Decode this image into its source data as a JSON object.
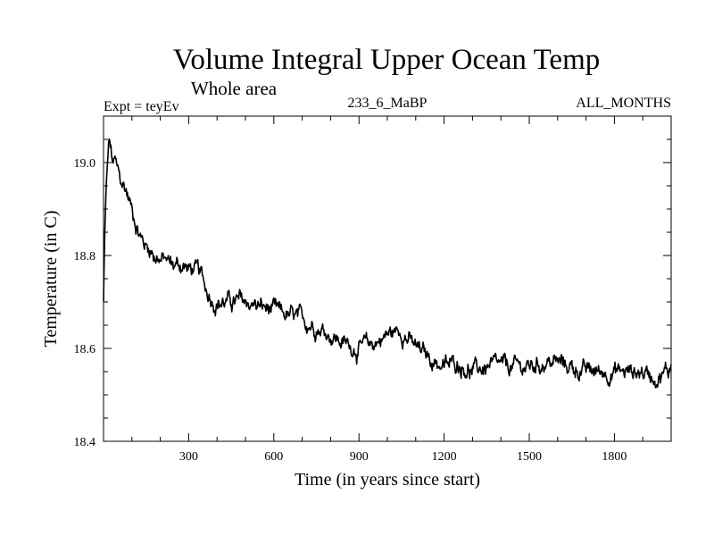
{
  "chart_data": {
    "type": "line",
    "title": "Volume Integral Upper Ocean Temp",
    "subtitle": "Whole area",
    "expt_label": "Expt = teyEv",
    "run_label": "233_6_MaBP",
    "months_label": "ALL_MONTHS",
    "xlabel": "Time (in years since start)",
    "ylabel": "Temperature (in C)",
    "xlim": [
      0,
      2000
    ],
    "ylim": [
      18.4,
      19.1
    ],
    "xticks": [
      "300",
      "600",
      "900",
      "1200",
      "1500",
      "1800"
    ],
    "yticks": [
      "18.4",
      "18.6",
      "18.8",
      "19.0"
    ],
    "grid": false,
    "series": [
      {
        "name": "Volume Integral Upper Ocean Temp",
        "color": "#000000",
        "x": [
          0,
          5,
          10,
          15,
          20,
          25,
          30,
          40,
          50,
          60,
          70,
          80,
          90,
          100,
          110,
          120,
          130,
          140,
          150,
          160,
          170,
          180,
          190,
          200,
          220,
          240,
          260,
          280,
          300,
          320,
          340,
          360,
          380,
          400,
          450,
          500,
          550,
          600,
          650,
          700,
          750,
          800,
          850,
          900,
          950,
          1000,
          1050,
          1100,
          1150,
          1200,
          1250,
          1300,
          1350,
          1400,
          1450,
          1500,
          1550,
          1600,
          1650,
          1700,
          1750,
          1800,
          1850,
          1900,
          1950,
          1990,
          2000
        ],
        "values": [
          18.7,
          18.86,
          18.95,
          19.0,
          19.05,
          19.03,
          19.0,
          19.0,
          18.98,
          18.96,
          18.95,
          18.94,
          18.92,
          18.9,
          18.88,
          18.86,
          18.84,
          18.83,
          18.82,
          18.82,
          18.81,
          18.8,
          18.8,
          18.79,
          18.79,
          18.78,
          18.78,
          18.78,
          18.77,
          18.77,
          18.76,
          18.73,
          18.71,
          18.7,
          18.7,
          18.7,
          18.69,
          18.68,
          18.67,
          18.66,
          18.65,
          18.63,
          18.61,
          18.6,
          18.61,
          18.63,
          18.64,
          18.6,
          18.58,
          18.56,
          18.57,
          18.55,
          18.56,
          18.56,
          18.56,
          18.56,
          18.57,
          18.57,
          18.56,
          18.55,
          18.55,
          18.55,
          18.55,
          18.55,
          18.54,
          18.55,
          18.57
        ]
      }
    ]
  }
}
